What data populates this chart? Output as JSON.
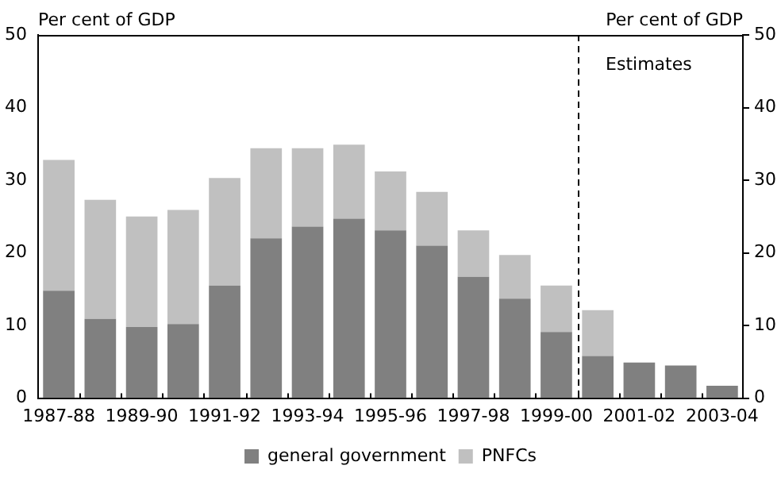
{
  "chart_data": {
    "type": "bar",
    "stacked": true,
    "ylabel": "Per cent of GDP",
    "y2label": "Per cent of GDP",
    "categories": [
      "1987-88",
      null,
      "1989-90",
      null,
      "1991-92",
      null,
      "1993-94",
      null,
      "1995-96",
      null,
      "1997-98",
      null,
      "1999-00",
      null,
      "2001-02",
      null,
      "2003-04"
    ],
    "series": [
      {
        "name": "general government",
        "color": "#808080",
        "values": [
          14.8,
          10.9,
          9.8,
          10.2,
          15.5,
          22.0,
          23.6,
          24.7,
          23.1,
          21.0,
          16.7,
          13.7,
          9.1,
          5.8,
          4.9,
          4.5,
          1.7
        ]
      },
      {
        "name": "PNFCs",
        "color": "#c0c0c0",
        "values": [
          18.0,
          16.4,
          15.2,
          15.7,
          14.8,
          12.4,
          10.8,
          10.2,
          8.1,
          7.4,
          6.4,
          6.0,
          6.4,
          6.3,
          null,
          null,
          null
        ]
      }
    ],
    "ylim": [
      0,
      50
    ],
    "yticks": [
      0,
      10,
      20,
      30,
      40,
      50
    ],
    "y2lim": [
      0,
      50
    ],
    "y2ticks": [
      0,
      10,
      20,
      30,
      40,
      50
    ],
    "annotations": [
      "Estimates"
    ],
    "grid": false,
    "legend": "bottom"
  }
}
